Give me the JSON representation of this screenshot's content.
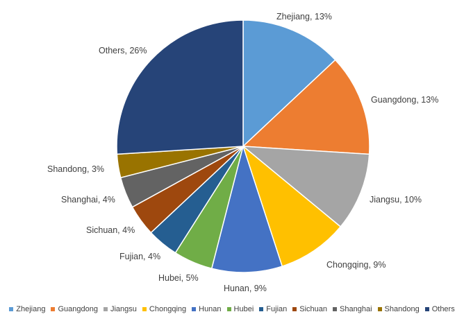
{
  "chart_data": {
    "type": "pie",
    "title": "",
    "start_angle_deg": 0,
    "direction": "clockwise",
    "legend_position": "bottom",
    "slices": [
      {
        "name": "Zhejiang",
        "value": 13,
        "label": "Zhejiang, 13%",
        "color": "#5B9BD5"
      },
      {
        "name": "Guangdong",
        "value": 13,
        "label": "Guangdong, 13%",
        "color": "#ED7D31"
      },
      {
        "name": "Jiangsu",
        "value": 10,
        "label": "Jiangsu, 10%",
        "color": "#A5A5A5"
      },
      {
        "name": "Chongqing",
        "value": 9,
        "label": "Chongqing, 9%",
        "color": "#FFC000"
      },
      {
        "name": "Hunan",
        "value": 9,
        "label": "Hunan, 9%",
        "color": "#4472C4"
      },
      {
        "name": "Hubei",
        "value": 5,
        "label": "Hubei, 5%",
        "color": "#70AD47"
      },
      {
        "name": "Fujian",
        "value": 4,
        "label": "Fujian, 4%",
        "color": "#255E91"
      },
      {
        "name": "Sichuan",
        "value": 4,
        "label": "Sichuan, 4%",
        "color": "#9E480E"
      },
      {
        "name": "Shanghai",
        "value": 4,
        "label": "Shanghai, 4%",
        "color": "#636363"
      },
      {
        "name": "Shandong",
        "value": 3,
        "label": "Shandong, 3%",
        "color": "#997300"
      },
      {
        "name": "Others",
        "value": 26,
        "label": "Others, 26%",
        "color": "#264478"
      }
    ]
  }
}
